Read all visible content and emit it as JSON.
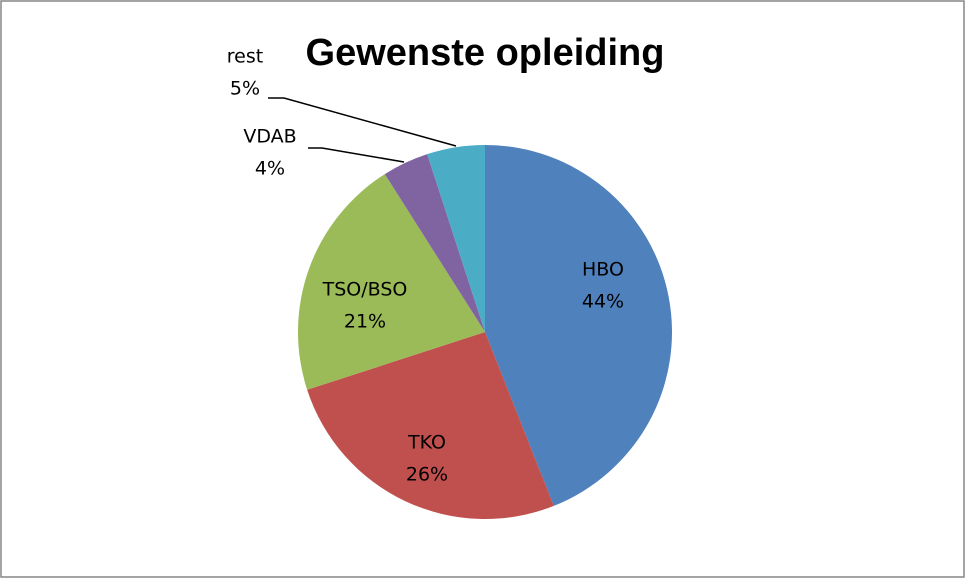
{
  "chart_data": {
    "type": "pie",
    "title": "Gewenste opleiding",
    "categories": [
      "HBO",
      "TKO",
      "TSO/BSO",
      "VDAB",
      "rest"
    ],
    "values": [
      44,
      26,
      21,
      4,
      5
    ],
    "value_labels": [
      "44%",
      "26%",
      "21%",
      "4%",
      "5%"
    ],
    "colors": [
      "#4f81bd",
      "#c0504d",
      "#9bbb59",
      "#8064a2",
      "#4bacc6"
    ]
  }
}
